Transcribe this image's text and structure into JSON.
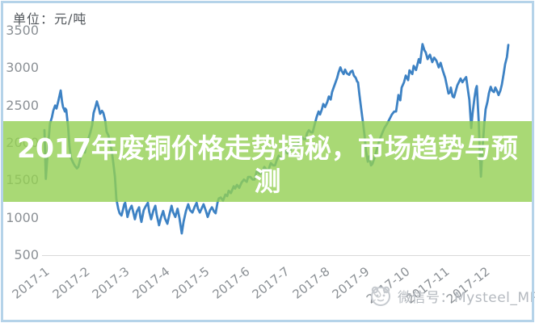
{
  "unit_label": "单位：元/吨",
  "banner": {
    "background_color": "#94d052",
    "text_color": "#ffffff",
    "title_lines": [
      "2017年废铜价格走势揭秘，市场趋势与预",
      "测"
    ]
  },
  "watermark": {
    "logo": "mysteel-mascot-logo",
    "text": "微信号：Mysteel_MRI"
  },
  "chart_data": {
    "type": "line",
    "title": "2017年废铜价格走势揭秘，市场趋势与预测",
    "ylabel": "元/吨",
    "xlabel": "",
    "ylim": [
      500,
      3500
    ],
    "y_ticks": [
      3500,
      3000,
      2500,
      2000,
      1500,
      1000,
      500
    ],
    "x_tick_labels": [
      "2017-1",
      "2017-2",
      "2017-3",
      "2017-4",
      "2017-5",
      "2017-6",
      "2017-7",
      "2017-8",
      "2017-9",
      "2017-10",
      "2017-11",
      "2017-12"
    ],
    "grid": "off",
    "legend": "none",
    "line_color": "#3d82c4",
    "x_unit": "fraction of year 2017 (0 = early Jan, 1 = late Dec)",
    "points": [
      [
        0.0,
        2170
      ],
      [
        0.003,
        1520
      ],
      [
        0.009,
        2050
      ],
      [
        0.012,
        2260
      ],
      [
        0.016,
        2340
      ],
      [
        0.019,
        2430
      ],
      [
        0.023,
        2500
      ],
      [
        0.026,
        2460
      ],
      [
        0.03,
        2560
      ],
      [
        0.035,
        2700
      ],
      [
        0.038,
        2550
      ],
      [
        0.04,
        2480
      ],
      [
        0.044,
        2420
      ],
      [
        0.045,
        2460
      ],
      [
        0.047,
        2440
      ],
      [
        0.051,
        2210
      ],
      [
        0.054,
        1950
      ],
      [
        0.057,
        1800
      ],
      [
        0.063,
        1720
      ],
      [
        0.066,
        1690
      ],
      [
        0.07,
        1660
      ],
      [
        0.073,
        1680
      ],
      [
        0.078,
        1800
      ],
      [
        0.084,
        1900
      ],
      [
        0.087,
        1870
      ],
      [
        0.091,
        1990
      ],
      [
        0.096,
        2080
      ],
      [
        0.099,
        2140
      ],
      [
        0.103,
        2240
      ],
      [
        0.106,
        2400
      ],
      [
        0.11,
        2480
      ],
      [
        0.113,
        2555
      ],
      [
        0.117,
        2470
      ],
      [
        0.12,
        2390
      ],
      [
        0.124,
        2430
      ],
      [
        0.127,
        2400
      ],
      [
        0.131,
        2300
      ],
      [
        0.134,
        2150
      ],
      [
        0.138,
        2100
      ],
      [
        0.141,
        2000
      ],
      [
        0.145,
        1900
      ],
      [
        0.148,
        1750
      ],
      [
        0.152,
        1550
      ],
      [
        0.155,
        1250
      ],
      [
        0.159,
        1120
      ],
      [
        0.162,
        1060
      ],
      [
        0.166,
        1030
      ],
      [
        0.169,
        1100
      ],
      [
        0.172,
        1180
      ],
      [
        0.174,
        1200
      ],
      [
        0.178,
        1050
      ],
      [
        0.179,
        1010
      ],
      [
        0.183,
        1100
      ],
      [
        0.188,
        1160
      ],
      [
        0.192,
        1060
      ],
      [
        0.195,
        980
      ],
      [
        0.199,
        1080
      ],
      [
        0.204,
        1140
      ],
      [
        0.207,
        1000
      ],
      [
        0.209,
        945
      ],
      [
        0.214,
        1100
      ],
      [
        0.218,
        1150
      ],
      [
        0.223,
        1200
      ],
      [
        0.226,
        1080
      ],
      [
        0.23,
        980
      ],
      [
        0.235,
        1100
      ],
      [
        0.239,
        1160
      ],
      [
        0.242,
        1040
      ],
      [
        0.247,
        900
      ],
      [
        0.251,
        1000
      ],
      [
        0.256,
        1090
      ],
      [
        0.26,
        990
      ],
      [
        0.265,
        920
      ],
      [
        0.27,
        1060
      ],
      [
        0.274,
        1160
      ],
      [
        0.277,
        1080
      ],
      [
        0.282,
        1010
      ],
      [
        0.287,
        1120
      ],
      [
        0.291,
        1000
      ],
      [
        0.296,
        790
      ],
      [
        0.3,
        950
      ],
      [
        0.305,
        1090
      ],
      [
        0.31,
        1180
      ],
      [
        0.314,
        1100
      ],
      [
        0.319,
        1070
      ],
      [
        0.324,
        1150
      ],
      [
        0.328,
        1200
      ],
      [
        0.331,
        1120
      ],
      [
        0.335,
        1070
      ],
      [
        0.34,
        1140
      ],
      [
        0.343,
        1180
      ],
      [
        0.348,
        1090
      ],
      [
        0.352,
        1010
      ],
      [
        0.357,
        1100
      ],
      [
        0.361,
        1140
      ],
      [
        0.366,
        1080
      ],
      [
        0.369,
        1060
      ],
      [
        0.373,
        1200
      ],
      [
        0.376,
        1260
      ],
      [
        0.38,
        1270
      ],
      [
        0.385,
        1230
      ],
      [
        0.39,
        1310
      ],
      [
        0.394,
        1290
      ],
      [
        0.397,
        1360
      ],
      [
        0.402,
        1330
      ],
      [
        0.408,
        1420
      ],
      [
        0.411,
        1390
      ],
      [
        0.415,
        1440
      ],
      [
        0.42,
        1400
      ],
      [
        0.425,
        1470
      ],
      [
        0.43,
        1510
      ],
      [
        0.436,
        1480
      ],
      [
        0.439,
        1545
      ],
      [
        0.444,
        1545
      ],
      [
        0.449,
        1510
      ],
      [
        0.453,
        1510
      ],
      [
        0.458,
        1630
      ],
      [
        0.463,
        1590
      ],
      [
        0.467,
        1590
      ],
      [
        0.474,
        1680
      ],
      [
        0.479,
        1640
      ],
      [
        0.483,
        1640
      ],
      [
        0.488,
        1730
      ],
      [
        0.493,
        1700
      ],
      [
        0.497,
        1700
      ],
      [
        0.502,
        1790
      ],
      [
        0.505,
        1830
      ],
      [
        0.51,
        1790
      ],
      [
        0.514,
        1790
      ],
      [
        0.519,
        1900
      ],
      [
        0.524,
        1860
      ],
      [
        0.528,
        1860
      ],
      [
        0.533,
        1960
      ],
      [
        0.537,
        1990
      ],
      [
        0.542,
        1950
      ],
      [
        0.545,
        1950
      ],
      [
        0.551,
        2050
      ],
      [
        0.554,
        2085
      ],
      [
        0.559,
        2050
      ],
      [
        0.563,
        2050
      ],
      [
        0.566,
        2130
      ],
      [
        0.57,
        2170
      ],
      [
        0.575,
        2140
      ],
      [
        0.578,
        2140
      ],
      [
        0.584,
        2280
      ],
      [
        0.587,
        2350
      ],
      [
        0.591,
        2420
      ],
      [
        0.594,
        2380
      ],
      [
        0.598,
        2450
      ],
      [
        0.601,
        2520
      ],
      [
        0.605,
        2480
      ],
      [
        0.61,
        2550
      ],
      [
        0.613,
        2620
      ],
      [
        0.617,
        2580
      ],
      [
        0.62,
        2680
      ],
      [
        0.624,
        2750
      ],
      [
        0.627,
        2800
      ],
      [
        0.631,
        2870
      ],
      [
        0.634,
        2940
      ],
      [
        0.638,
        3010
      ],
      [
        0.641,
        2960
      ],
      [
        0.645,
        2920
      ],
      [
        0.648,
        2980
      ],
      [
        0.652,
        2930
      ],
      [
        0.657,
        2910
      ],
      [
        0.66,
        2950
      ],
      [
        0.664,
        2965
      ],
      [
        0.667,
        2900
      ],
      [
        0.671,
        2870
      ],
      [
        0.674,
        2820
      ],
      [
        0.676,
        2810
      ],
      [
        0.679,
        2650
      ],
      [
        0.683,
        2450
      ],
      [
        0.686,
        2300
      ],
      [
        0.69,
        2100
      ],
      [
        0.693,
        1900
      ],
      [
        0.697,
        1750
      ],
      [
        0.7,
        1820
      ],
      [
        0.704,
        1700
      ],
      [
        0.707,
        1720
      ],
      [
        0.713,
        1830
      ],
      [
        0.718,
        1950
      ],
      [
        0.723,
        2050
      ],
      [
        0.728,
        2130
      ],
      [
        0.733,
        2200
      ],
      [
        0.739,
        2260
      ],
      [
        0.744,
        2320
      ],
      [
        0.749,
        2380
      ],
      [
        0.754,
        2420
      ],
      [
        0.758,
        2420
      ],
      [
        0.763,
        2640
      ],
      [
        0.767,
        2570
      ],
      [
        0.77,
        2740
      ],
      [
        0.775,
        2810
      ],
      [
        0.779,
        2900
      ],
      [
        0.784,
        2840
      ],
      [
        0.787,
        2970
      ],
      [
        0.793,
        2920
      ],
      [
        0.796,
        3030
      ],
      [
        0.801,
        2975
      ],
      [
        0.807,
        3120
      ],
      [
        0.81,
        3070
      ],
      [
        0.815,
        3320
      ],
      [
        0.819,
        3240
      ],
      [
        0.822,
        3210
      ],
      [
        0.826,
        3120
      ],
      [
        0.831,
        3180
      ],
      [
        0.836,
        3080
      ],
      [
        0.84,
        3140
      ],
      [
        0.845,
        3100
      ],
      [
        0.85,
        3010
      ],
      [
        0.854,
        3070
      ],
      [
        0.859,
        2960
      ],
      [
        0.864,
        2870
      ],
      [
        0.868,
        2750
      ],
      [
        0.871,
        2660
      ],
      [
        0.875,
        2680
      ],
      [
        0.876,
        2740
      ],
      [
        0.88,
        2620
      ],
      [
        0.883,
        2610
      ],
      [
        0.887,
        2700
      ],
      [
        0.89,
        2770
      ],
      [
        0.894,
        2820
      ],
      [
        0.897,
        2860
      ],
      [
        0.901,
        2810
      ],
      [
        0.904,
        2840
      ],
      [
        0.909,
        2880
      ],
      [
        0.913,
        2700
      ],
      [
        0.916,
        2575
      ],
      [
        0.92,
        2200
      ],
      [
        0.923,
        2400
      ],
      [
        0.927,
        2600
      ],
      [
        0.93,
        2720
      ],
      [
        0.932,
        2760
      ],
      [
        0.936,
        2300
      ],
      [
        0.939,
        1800
      ],
      [
        0.941,
        1550
      ],
      [
        0.944,
        1900
      ],
      [
        0.948,
        2250
      ],
      [
        0.951,
        2450
      ],
      [
        0.955,
        2550
      ],
      [
        0.958,
        2660
      ],
      [
        0.962,
        2750
      ],
      [
        0.965,
        2700
      ],
      [
        0.969,
        2680
      ],
      [
        0.972,
        2740
      ],
      [
        0.976,
        2690
      ],
      [
        0.979,
        2640
      ],
      [
        0.983,
        2700
      ],
      [
        0.986,
        2780
      ],
      [
        0.99,
        2930
      ],
      [
        0.993,
        3050
      ],
      [
        0.997,
        3150
      ],
      [
        1.0,
        3310
      ]
    ]
  }
}
